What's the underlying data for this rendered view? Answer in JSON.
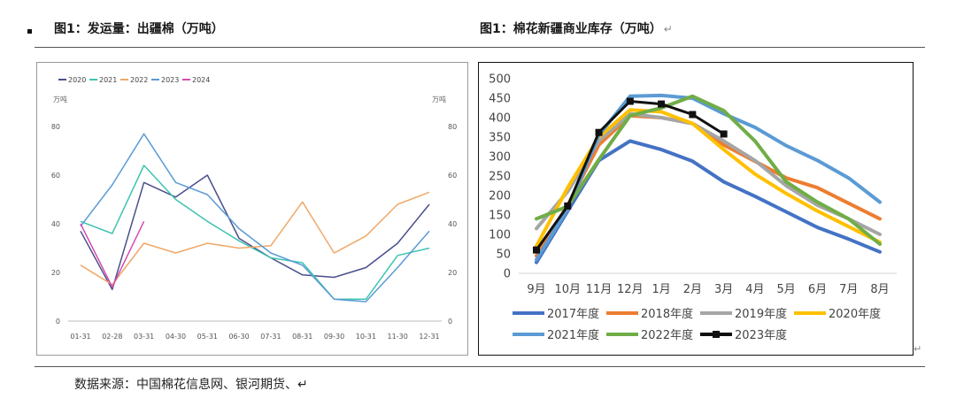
{
  "header": {
    "fig1_title": "图1：发运量：出疆棉（万吨）",
    "fig2_title": "图1：棉花新疆商业库存（万吨）",
    "pilcrow": "↵"
  },
  "footer": {
    "source": "数据来源：中国棉花信息网、银河期货、↵"
  },
  "chart_data": [
    {
      "type": "line",
      "title": "",
      "unit_left": "万吨",
      "unit_right": "万吨",
      "categories": [
        "01-31",
        "02-28",
        "03-31",
        "04-30",
        "05-31",
        "06-30",
        "07-31",
        "08-31",
        "09-30",
        "10-31",
        "11-30",
        "12-31"
      ],
      "ylim": [
        0,
        80
      ],
      "yticks": [
        0,
        20,
        40,
        60,
        80
      ],
      "legend_position": "top-left",
      "grid": false,
      "series": [
        {
          "name": "2020",
          "color": "#4a4f8c",
          "values": [
            37,
            13,
            57,
            51,
            60,
            34,
            26,
            19,
            18,
            22,
            32,
            48
          ]
        },
        {
          "name": "2021",
          "color": "#3ec4b0",
          "values": [
            41,
            36,
            64,
            50,
            41,
            33,
            26,
            24,
            9,
            9,
            27,
            30
          ]
        },
        {
          "name": "2022",
          "color": "#f0a868",
          "values": [
            23,
            15,
            32,
            28,
            32,
            30,
            31,
            49,
            28,
            35,
            48,
            53
          ]
        },
        {
          "name": "2023",
          "color": "#5b9bd5",
          "values": [
            39,
            56,
            77,
            57,
            52,
            38,
            28,
            23,
            9,
            8,
            22,
            37
          ]
        },
        {
          "name": "2024",
          "color": "#d64cb0",
          "values": [
            40,
            14,
            41,
            null,
            null,
            null,
            null,
            null,
            null,
            null,
            null,
            null
          ]
        }
      ]
    },
    {
      "type": "line",
      "title": "",
      "categories": [
        "9月",
        "10月",
        "11月",
        "12月",
        "1月",
        "2月",
        "3月",
        "4月",
        "5月",
        "6月",
        "7月",
        "8月"
      ],
      "ylim": [
        0,
        500
      ],
      "yticks": [
        0,
        50,
        100,
        150,
        200,
        250,
        300,
        350,
        400,
        450,
        500
      ],
      "legend_position": "bottom",
      "grid": false,
      "series": [
        {
          "name": "2017年度",
          "color": "#4472c4",
          "values": [
            28,
            160,
            290,
            340,
            318,
            288,
            235,
            198,
            158,
            118,
            88,
            55
          ]
        },
        {
          "name": "2018年度",
          "color": "#ed7d31",
          "values": [
            45,
            175,
            330,
            405,
            400,
            385,
            330,
            288,
            245,
            220,
            180,
            140
          ]
        },
        {
          "name": "2019年度",
          "color": "#a5a5a5",
          "values": [
            115,
            210,
            340,
            410,
            400,
            385,
            340,
            290,
            225,
            175,
            140,
            100
          ]
        },
        {
          "name": "2020年度",
          "color": "#ffc000",
          "values": [
            70,
            220,
            350,
            420,
            415,
            385,
            318,
            255,
            205,
            160,
            120,
            80
          ]
        },
        {
          "name": "2021年度",
          "color": "#5b9bd5",
          "values": [
            35,
            165,
            355,
            455,
            457,
            450,
            410,
            375,
            328,
            290,
            245,
            183
          ]
        },
        {
          "name": "2022年度",
          "color": "#70ad47",
          "values": [
            140,
            172,
            292,
            405,
            425,
            455,
            418,
            340,
            235,
            183,
            140,
            75
          ]
        },
        {
          "name": "2023年度",
          "color": "#111111",
          "marker": "square",
          "values": [
            60,
            173,
            362,
            442,
            435,
            408,
            358,
            null,
            null,
            null,
            null,
            null
          ]
        }
      ]
    }
  ]
}
